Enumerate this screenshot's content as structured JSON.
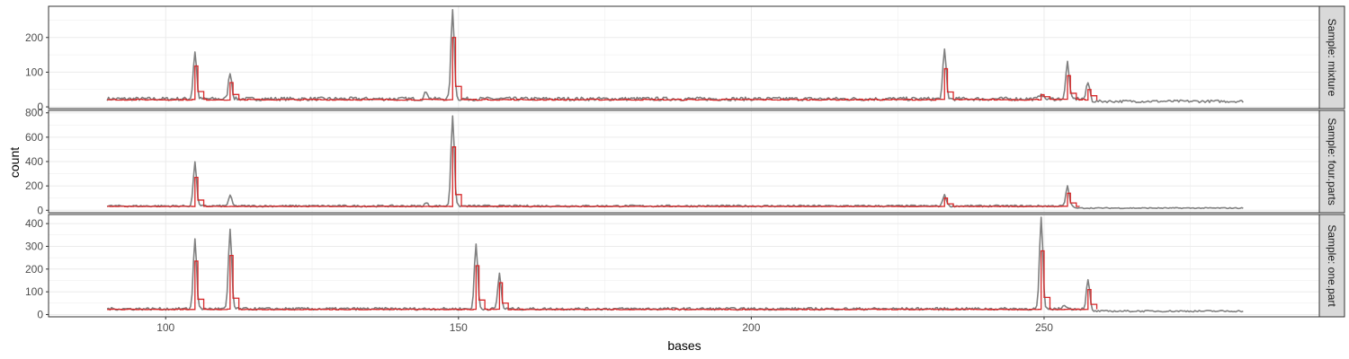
{
  "chart_data": {
    "type": "line",
    "xlabel": "bases",
    "ylabel": "count",
    "xlim": [
      80,
      297
    ],
    "x_ticks": [
      100,
      150,
      200,
      250
    ],
    "x_range": [
      90,
      284
    ],
    "colors": {
      "raw": "#808080",
      "fit": "#d62728"
    },
    "panels": [
      {
        "strip_label": "Sample: mixture",
        "ylim": [
          -5,
          290
        ],
        "y_ticks": [
          0,
          100,
          200
        ],
        "baseline": 23,
        "tail_start": 258,
        "tail_level": 16,
        "peaks": [
          {
            "x": 105,
            "raw": 160,
            "fit": 118
          },
          {
            "x": 111,
            "raw": 100,
            "fit": 70
          },
          {
            "x": 144.5,
            "raw": 45,
            "fit": 0
          },
          {
            "x": 149,
            "raw": 280,
            "fit": 200
          },
          {
            "x": 233,
            "raw": 163,
            "fit": 110
          },
          {
            "x": 249.5,
            "raw": 40,
            "fit": 35
          },
          {
            "x": 254,
            "raw": 130,
            "fit": 90
          },
          {
            "x": 257.5,
            "raw": 70,
            "fit": 50
          }
        ]
      },
      {
        "strip_label": "Sample: four.parts",
        "ylim": [
          -20,
          820
        ],
        "y_ticks": [
          0,
          200,
          400,
          600,
          800
        ],
        "baseline": 35,
        "tail_start": 255,
        "tail_level": 18,
        "peaks": [
          {
            "x": 105,
            "raw": 390,
            "fit": 270
          },
          {
            "x": 111,
            "raw": 120,
            "fit": 0
          },
          {
            "x": 144.5,
            "raw": 60,
            "fit": 0
          },
          {
            "x": 149,
            "raw": 780,
            "fit": 520
          },
          {
            "x": 233,
            "raw": 130,
            "fit": 100
          },
          {
            "x": 254,
            "raw": 195,
            "fit": 140
          }
        ]
      },
      {
        "strip_label": "Sample: one.part",
        "ylim": [
          -10,
          440
        ],
        "y_ticks": [
          0,
          100,
          200,
          300,
          400
        ],
        "baseline": 25,
        "tail_start": 258,
        "tail_level": 15,
        "peaks": [
          {
            "x": 105,
            "raw": 335,
            "fit": 235
          },
          {
            "x": 111,
            "raw": 375,
            "fit": 260
          },
          {
            "x": 153,
            "raw": 310,
            "fit": 215
          },
          {
            "x": 157,
            "raw": 180,
            "fit": 140
          },
          {
            "x": 249.5,
            "raw": 425,
            "fit": 280
          },
          {
            "x": 253.5,
            "raw": 45,
            "fit": 0
          },
          {
            "x": 257.5,
            "raw": 150,
            "fit": 110
          }
        ]
      }
    ]
  }
}
